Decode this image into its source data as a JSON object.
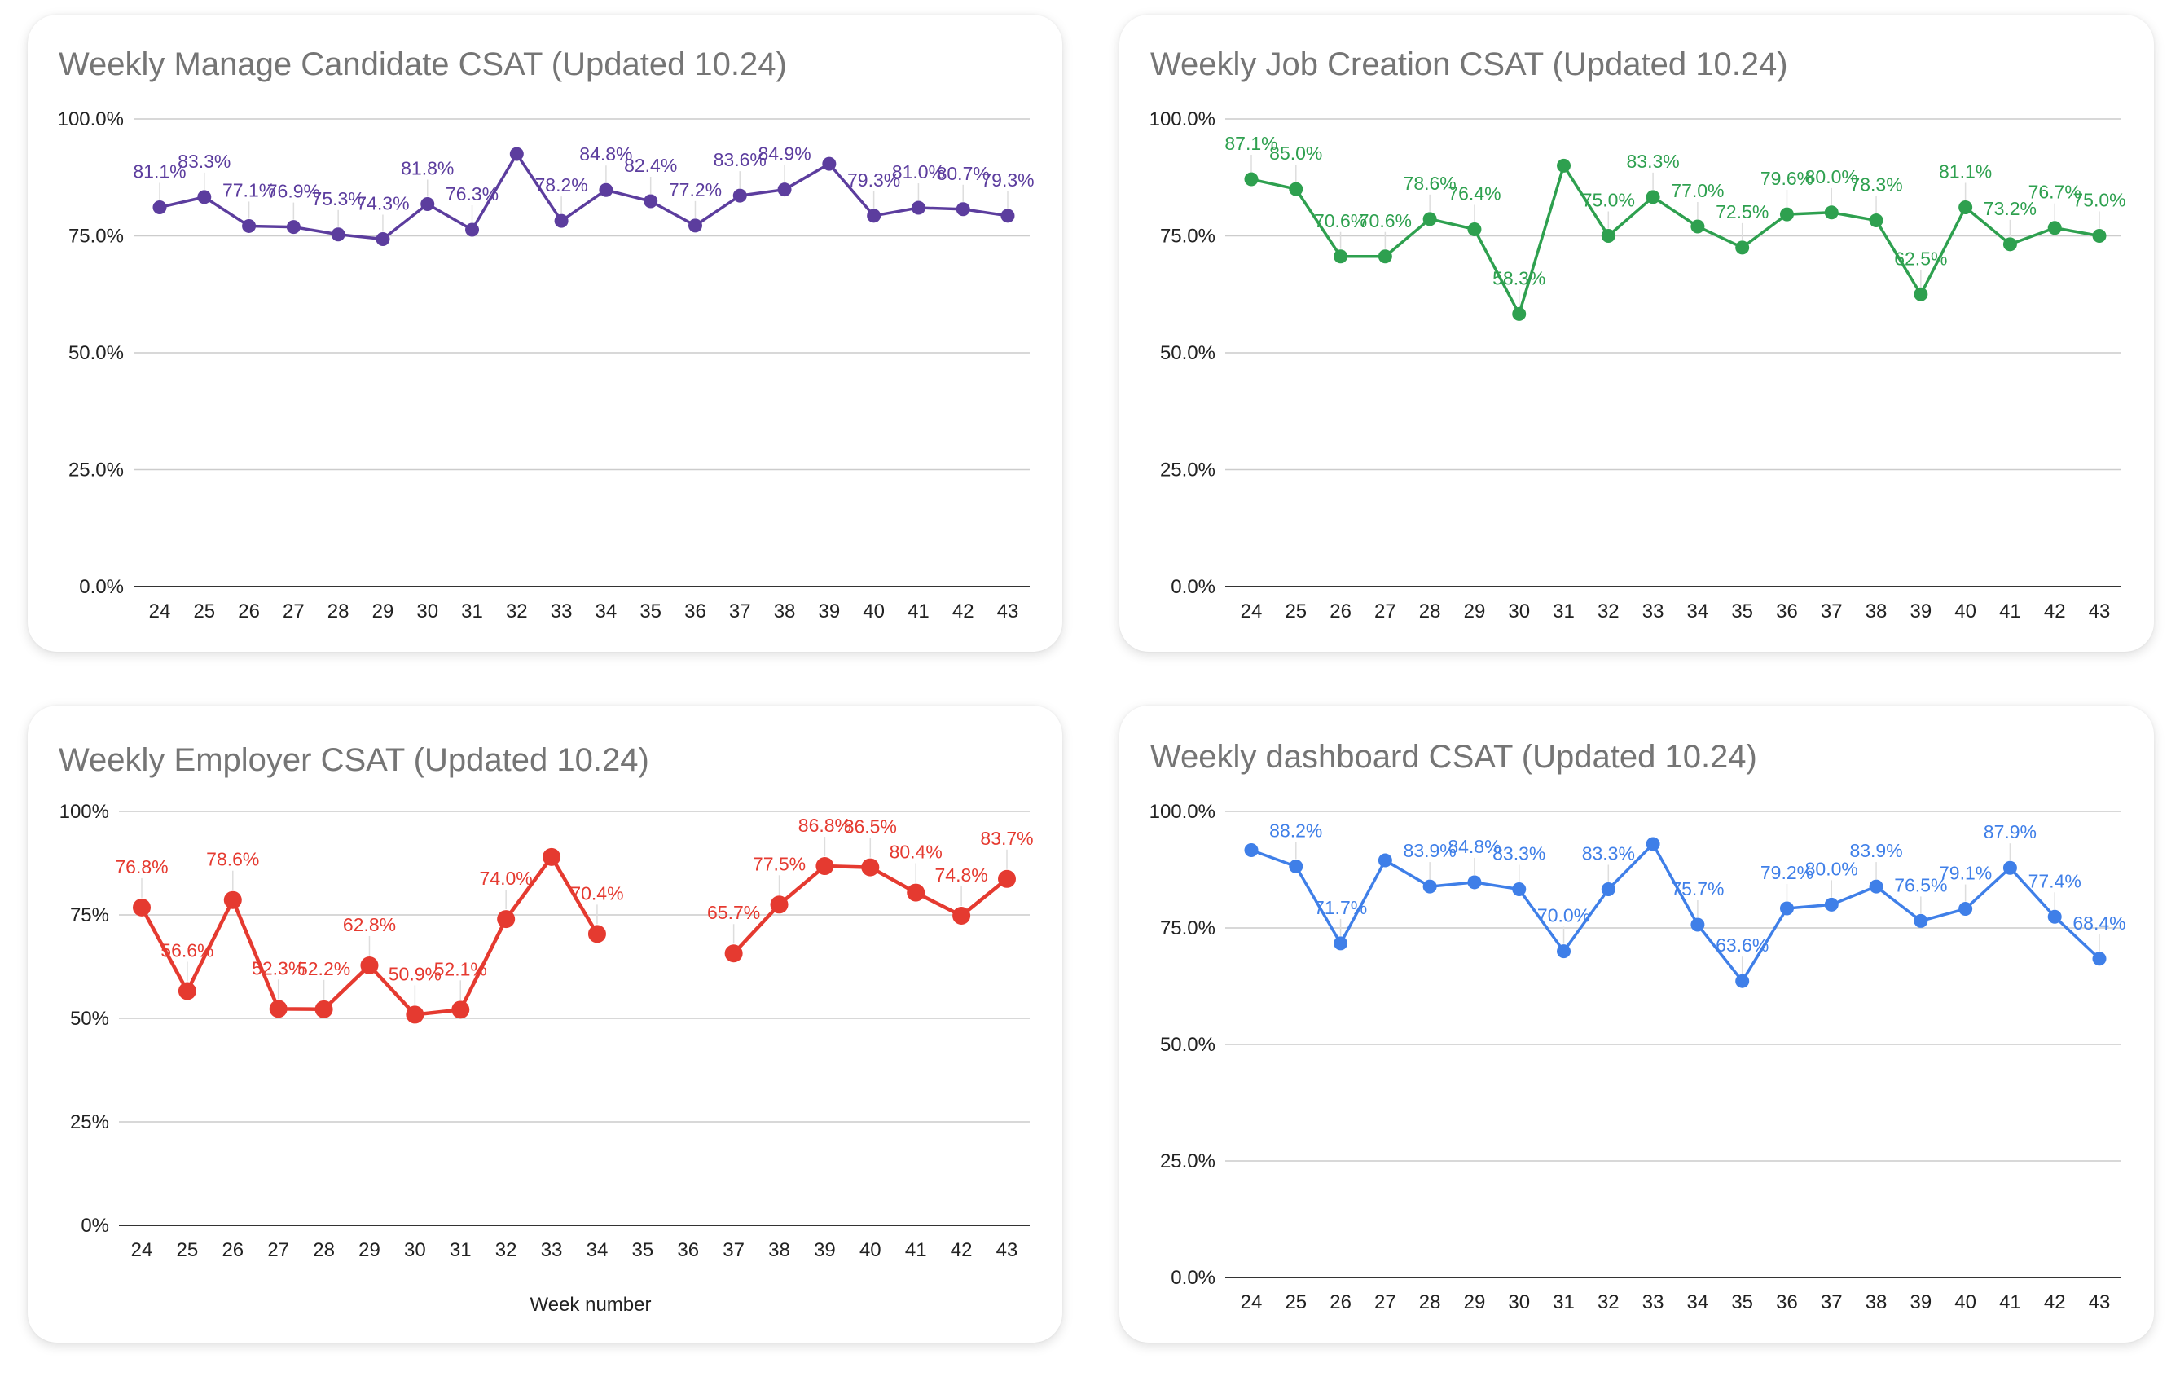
{
  "chart_data": [
    {
      "type": "line",
      "title": "Weekly Manage Candidate CSAT (Updated 10.24)",
      "color": "#5c3d9e",
      "xlabel": "",
      "ylabel": "",
      "ylim": [
        0,
        100
      ],
      "yticks": [
        "0.0%",
        "25.0%",
        "50.0%",
        "75.0%",
        "100.0%"
      ],
      "categories": [
        "24",
        "25",
        "26",
        "27",
        "28",
        "29",
        "30",
        "31",
        "32",
        "33",
        "34",
        "35",
        "36",
        "37",
        "38",
        "39",
        "40",
        "41",
        "42",
        "43"
      ],
      "values": [
        81.1,
        83.3,
        77.1,
        76.9,
        75.3,
        74.3,
        81.8,
        76.3,
        92.5,
        78.2,
        84.8,
        82.4,
        77.2,
        83.6,
        84.9,
        90.4,
        79.3,
        81.0,
        80.7,
        79.3
      ],
      "labels": [
        "81.1%",
        "83.3%",
        "77.1%",
        "76.9%",
        "75.3%",
        "74.3%",
        "81.8%",
        "76.3%",
        null,
        "78.2%",
        "84.8%",
        "82.4%",
        "77.2%",
        "83.6%",
        "84.9%",
        null,
        "79.3%",
        "81.0%",
        "80.7%",
        "79.3%"
      ],
      "marker": "small"
    },
    {
      "type": "line",
      "title": "Weekly Job Creation CSAT (Updated 10.24)",
      "color": "#2ea04f",
      "xlabel": "",
      "ylabel": "",
      "ylim": [
        0,
        100
      ],
      "yticks": [
        "0.0%",
        "25.0%",
        "50.0%",
        "75.0%",
        "100.0%"
      ],
      "categories": [
        "24",
        "25",
        "26",
        "27",
        "28",
        "29",
        "30",
        "31",
        "32",
        "33",
        "34",
        "35",
        "36",
        "37",
        "38",
        "39",
        "40",
        "41",
        "42",
        "43"
      ],
      "values": [
        87.1,
        85.0,
        70.6,
        70.6,
        78.6,
        76.4,
        58.3,
        90.0,
        75.0,
        83.3,
        77.0,
        72.5,
        79.6,
        80.0,
        78.3,
        62.5,
        81.1,
        73.2,
        76.7,
        75.0
      ],
      "labels": [
        "87.1%",
        "85.0%",
        "70.6%",
        "70.6%",
        "78.6%",
        "76.4%",
        "58.3%",
        null,
        "75.0%",
        "83.3%",
        "77.0%",
        "72.5%",
        "79.6%",
        "80.0%",
        "78.3%",
        "62.5%",
        "81.1%",
        "73.2%",
        "76.7%",
        "75.0%"
      ],
      "marker": "small"
    },
    {
      "type": "line",
      "title": "Weekly Employer CSAT (Updated 10.24)",
      "color": "#e53a30",
      "xlabel": "Week number",
      "ylabel": "",
      "ylim": [
        0,
        100
      ],
      "yticks": [
        "0%",
        "25%",
        "50%",
        "75%",
        "100%"
      ],
      "categories": [
        "24",
        "25",
        "26",
        "27",
        "28",
        "29",
        "30",
        "31",
        "32",
        "33",
        "34",
        "35",
        "36",
        "37",
        "38",
        "39",
        "40",
        "41",
        "42",
        "43"
      ],
      "values": [
        76.8,
        56.6,
        78.6,
        52.3,
        52.2,
        62.8,
        50.9,
        52.1,
        74.0,
        89.0,
        70.4,
        null,
        null,
        65.7,
        77.5,
        86.8,
        86.5,
        80.4,
        74.8,
        83.7
      ],
      "labels": [
        "76.8%",
        "56.6%",
        "78.6%",
        "52.3%",
        "52.2%",
        "62.8%",
        "50.9%",
        "52.1%",
        "74.0%",
        null,
        "70.4%",
        null,
        null,
        "65.7%",
        "77.5%",
        "86.8%",
        "86.5%",
        "80.4%",
        "74.8%",
        "83.7%"
      ],
      "marker": "large"
    },
    {
      "type": "line",
      "title": "Weekly dashboard CSAT (Updated 10.24)",
      "color": "#3f7fe8",
      "xlabel": "",
      "ylabel": "",
      "ylim": [
        0,
        100
      ],
      "yticks": [
        "0.0%",
        "25.0%",
        "50.0%",
        "75.0%",
        "100.0%"
      ],
      "categories": [
        "24",
        "25",
        "26",
        "27",
        "28",
        "29",
        "30",
        "31",
        "32",
        "33",
        "34",
        "35",
        "36",
        "37",
        "38",
        "39",
        "40",
        "41",
        "42",
        "43"
      ],
      "values": [
        91.7,
        88.2,
        71.7,
        89.5,
        83.9,
        84.8,
        83.3,
        70.0,
        83.3,
        93.0,
        75.7,
        63.6,
        79.2,
        80.0,
        83.9,
        76.5,
        79.1,
        87.9,
        77.4,
        68.4
      ],
      "labels": [
        null,
        "88.2%",
        "71.7%",
        null,
        "83.9%",
        "84.8%",
        "83.3%",
        "70.0%",
        "83.3%",
        null,
        "75.7%",
        "63.6%",
        "79.2%",
        "80.0%",
        "83.9%",
        "76.5%",
        "79.1%",
        "87.9%",
        "77.4%",
        "68.4%"
      ],
      "marker": "small"
    }
  ]
}
